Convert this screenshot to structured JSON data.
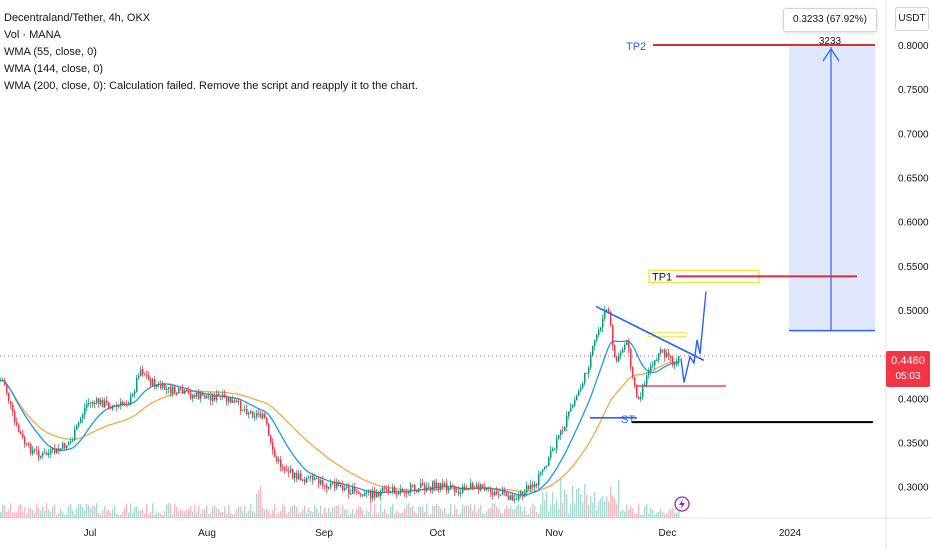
{
  "header": {
    "title": "Decentraland/Tether, 4h, OKX",
    "indicators": [
      "Vol · MANA",
      "WMA (55, close, 0)",
      "WMA (144, close, 0)",
      "WMA (200, close, 0): Calculation failed. Remove the script and reapply it to the chart."
    ]
  },
  "axis": {
    "unit_button": "USDT",
    "measure_label": "0.3233 (67.92%) 3233"
  },
  "current_price": {
    "value": "0.4480",
    "countdown": "05:03",
    "color": "#f23645"
  },
  "annotations": {
    "tp1": "TP1",
    "tp2": "TP2",
    "st": "ST"
  },
  "chart_data": {
    "type": "candlestick",
    "title": "Decentraland/Tether, 4h, OKX",
    "y_axis": {
      "ticks": [
        "0.8000",
        "0.7500",
        "0.7000",
        "0.6500",
        "0.6000",
        "0.5500",
        "0.5000",
        "0.4500",
        "0.4000",
        "0.3500",
        "0.3000"
      ],
      "ylim": [
        0.268,
        0.838
      ]
    },
    "x_axis": {
      "ticks": [
        "Jul",
        "Aug",
        "Sep",
        "Oct",
        "Nov",
        "Dec",
        "2024"
      ]
    },
    "price_path": [
      [
        "Jun 8",
        0.42
      ],
      [
        "Jun 11",
        0.37
      ],
      [
        "Jun 14",
        0.345
      ],
      [
        "Jun 18",
        0.335
      ],
      [
        "Jun 22",
        0.34
      ],
      [
        "Jun 26",
        0.352
      ],
      [
        "Jun 30",
        0.395
      ],
      [
        "Jul 4",
        0.395
      ],
      [
        "Jul 8",
        0.39
      ],
      [
        "Jul 12",
        0.4
      ],
      [
        "Jul 14",
        0.435
      ],
      [
        "Jul 17",
        0.418
      ],
      [
        "Jul 21",
        0.41
      ],
      [
        "Jul 26",
        0.405
      ],
      [
        "Jul 30",
        0.402
      ],
      [
        "Aug 3",
        0.402
      ],
      [
        "Aug 8",
        0.395
      ],
      [
        "Aug 12",
        0.385
      ],
      [
        "Aug 16",
        0.378
      ],
      [
        "Aug 19",
        0.33
      ],
      [
        "Aug 24",
        0.312
      ],
      [
        "Aug 30",
        0.305
      ],
      [
        "Sep 5",
        0.3
      ],
      [
        "Sep 11",
        0.29
      ],
      [
        "Sep 18",
        0.295
      ],
      [
        "Sep 25",
        0.298
      ],
      [
        "Oct 1",
        0.302
      ],
      [
        "Oct 6",
        0.295
      ],
      [
        "Oct 10",
        0.302
      ],
      [
        "Oct 16",
        0.292
      ],
      [
        "Oct 22",
        0.288
      ],
      [
        "Oct 27",
        0.305
      ],
      [
        "Nov 1",
        0.345
      ],
      [
        "Nov 5",
        0.385
      ],
      [
        "Nov 9",
        0.425
      ],
      [
        "Nov 12",
        0.47
      ],
      [
        "Nov 15",
        0.505
      ],
      [
        "Nov 17",
        0.44
      ],
      [
        "Nov 20",
        0.465
      ],
      [
        "Nov 23",
        0.395
      ],
      [
        "Nov 26",
        0.43
      ],
      [
        "Nov 29",
        0.455
      ],
      [
        "Dec 2",
        0.44
      ],
      [
        "Dec 4",
        0.448
      ]
    ],
    "series": [
      {
        "name": "WMA (55, close, 0)",
        "color": "#2196f3"
      },
      {
        "name": "WMA (144, close, 0)",
        "color": "#f7a847"
      }
    ],
    "levels": {
      "tp1": 0.538,
      "tp2": 0.8,
      "stop": 0.373,
      "entry": 0.472,
      "current": 0.448
    },
    "measurement": {
      "from": 0.4767,
      "to": 0.8,
      "change": "0.3233 (67.92%) 3233"
    }
  }
}
